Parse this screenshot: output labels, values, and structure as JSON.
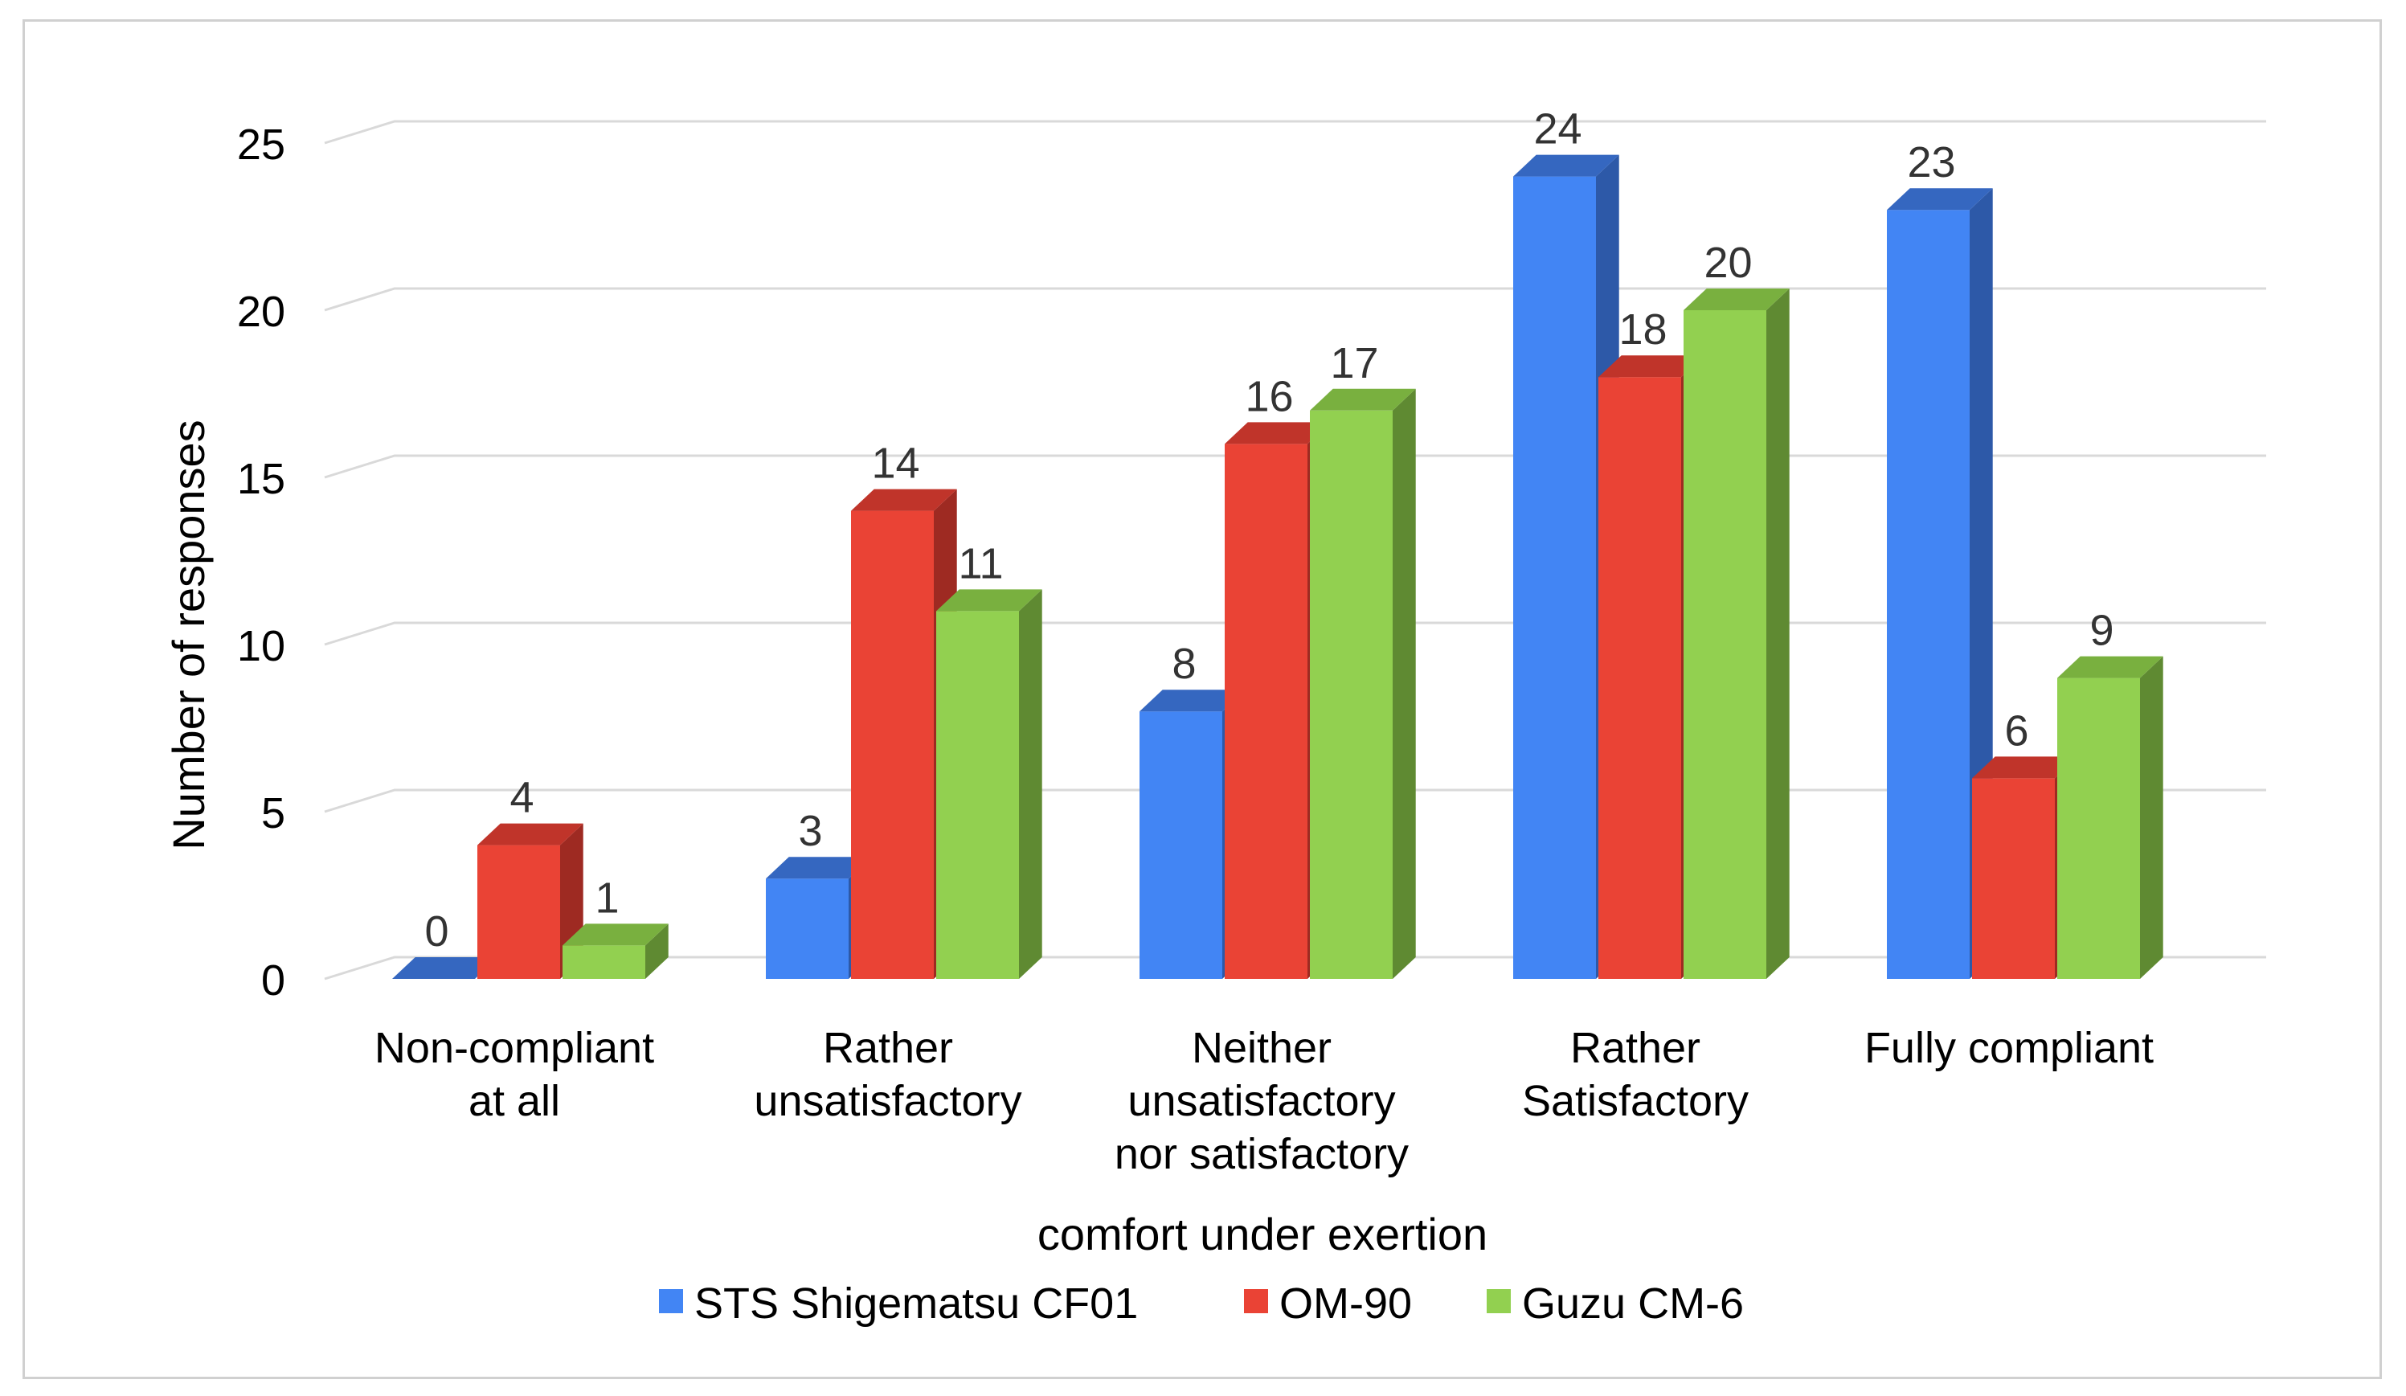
{
  "chart_data": {
    "type": "bar",
    "title": "",
    "xlabel": "comfort under exertion",
    "ylabel": "Number of responses",
    "ylim": [
      0,
      25
    ],
    "yticks": [
      0,
      5,
      10,
      15,
      20,
      25
    ],
    "yticks_labels": [
      "0",
      "5",
      "10",
      "15",
      "20",
      "25"
    ],
    "grid": true,
    "legend_position": "bottom",
    "categories": [
      [
        "Non-compliant",
        "at all"
      ],
      [
        "Rather",
        "unsatisfactory"
      ],
      [
        "Neither",
        "unsatisfactory",
        "nor satisfactory"
      ],
      [
        "Rather",
        "Satisfactory"
      ],
      [
        "Fully compliant"
      ]
    ],
    "series": [
      {
        "name": "STS Shigematsu CF01",
        "values": [
          0,
          3,
          8,
          24,
          23
        ],
        "color": "#4285f4",
        "side_color": "#2d59a8",
        "top_color": "#3567c0"
      },
      {
        "name": "OM-90",
        "values": [
          4,
          14,
          16,
          18,
          6
        ],
        "color": "#ea4335",
        "side_color": "#9e2a22",
        "top_color": "#c0342a"
      },
      {
        "name": "Guzu CM-6",
        "values": [
          1,
          11,
          17,
          20,
          9
        ],
        "color": "#92d050",
        "side_color": "#5f8a32",
        "top_color": "#79b03f"
      }
    ]
  }
}
